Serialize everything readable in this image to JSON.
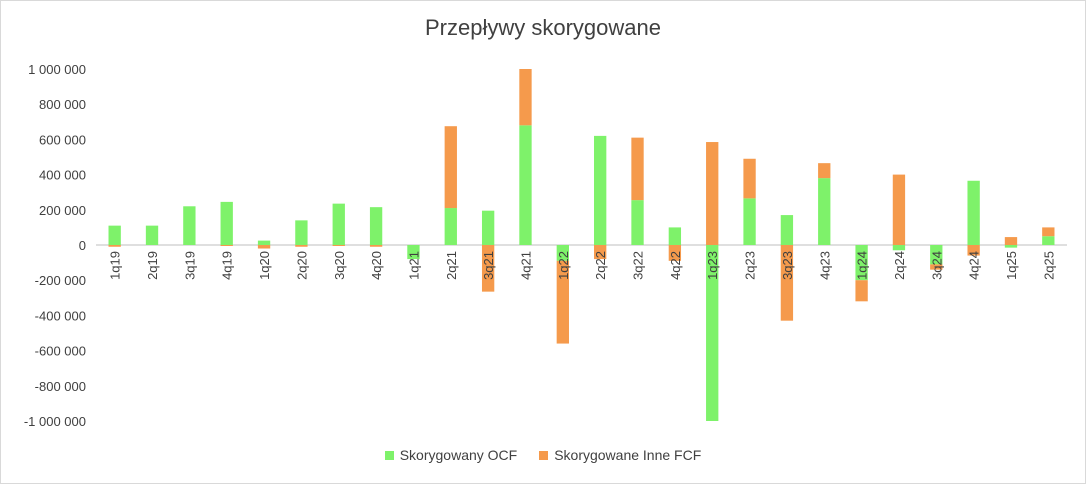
{
  "chart_data": {
    "type": "bar",
    "stacked": true,
    "title": "Przepływy skorygowane",
    "categories": [
      "1q19",
      "2q19",
      "3q19",
      "4q19",
      "1q20",
      "2q20",
      "3q20",
      "4q20",
      "1q21",
      "2q21",
      "3q21",
      "4q21",
      "1q22",
      "2q22",
      "3q22",
      "4q22",
      "1q23",
      "2q23",
      "3q23",
      "4q23",
      "1q24",
      "2q24",
      "3q24",
      "4q24",
      "1q25",
      "2q25"
    ],
    "series": [
      {
        "name": "Skorygowany OCF",
        "color": "#7ef26a",
        "values": [
          110000,
          110000,
          220000,
          245000,
          25000,
          140000,
          235000,
          215000,
          -80000,
          210000,
          195000,
          680000,
          -90000,
          620000,
          255000,
          100000,
          -1000000,
          265000,
          170000,
          380000,
          -200000,
          -30000,
          -110000,
          365000,
          -15000,
          50000
        ]
      },
      {
        "name": "Skorygowane Inne FCF",
        "color": "#f59a4c",
        "values": [
          -10000,
          0,
          0,
          -5000,
          -20000,
          -10000,
          -5000,
          -10000,
          0,
          465000,
          -265000,
          320000,
          -470000,
          -80000,
          355000,
          -90000,
          585000,
          225000,
          -430000,
          85000,
          -120000,
          400000,
          -30000,
          -60000,
          45000,
          50000
        ]
      }
    ],
    "yticks": [
      "1 000 000",
      "800 000",
      "600 000",
      "400 000",
      "200 000",
      "0",
      "-200 000",
      "-400 000",
      "-600 000",
      "-800 000",
      "-1 000 000"
    ],
    "ylim": [
      -1000000,
      1000000
    ],
    "grid": true,
    "legend_position": "bottom"
  }
}
